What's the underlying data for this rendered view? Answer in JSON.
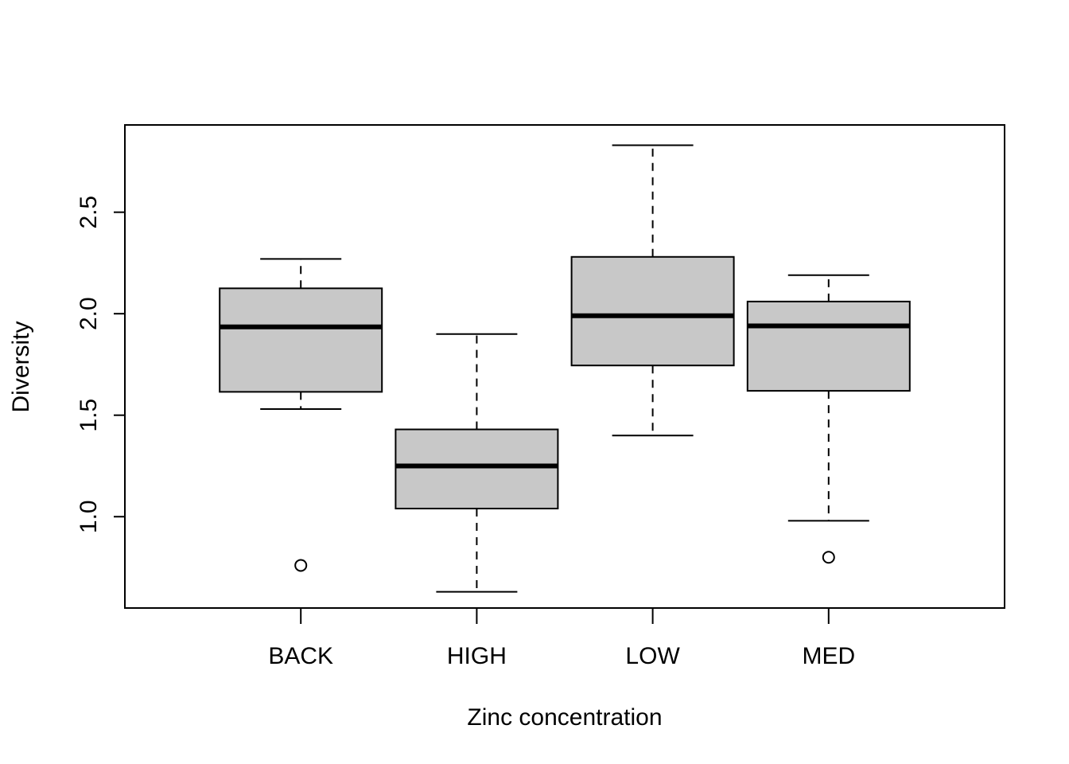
{
  "chart_data": {
    "type": "boxplot",
    "title": "",
    "xlabel": "Zinc concentration",
    "ylabel": "Diversity",
    "categories": [
      "BACK",
      "HIGH",
      "LOW",
      "MED"
    ],
    "ylim": [
      0.55,
      2.93
    ],
    "yticks": [
      1.0,
      1.5,
      2.0,
      2.5
    ],
    "ytick_labels": [
      "1.0",
      "1.5",
      "2.0",
      "2.5"
    ],
    "box_fill": "#c8c8c8",
    "grid": false,
    "legend": "none",
    "boxes": [
      {
        "category": "BACK",
        "whisker_low": 1.53,
        "q1": 1.615,
        "median": 1.935,
        "q3": 2.125,
        "whisker_high": 2.27,
        "outliers": [
          0.76
        ]
      },
      {
        "category": "HIGH",
        "whisker_low": 0.63,
        "q1": 1.04,
        "median": 1.25,
        "q3": 1.43,
        "whisker_high": 1.9,
        "outliers": []
      },
      {
        "category": "LOW",
        "whisker_low": 1.4,
        "q1": 1.745,
        "median": 1.99,
        "q3": 2.28,
        "whisker_high": 2.83,
        "outliers": []
      },
      {
        "category": "MED",
        "whisker_low": 0.98,
        "q1": 1.62,
        "median": 1.94,
        "q3": 2.06,
        "whisker_high": 2.19,
        "outliers": [
          0.8
        ]
      }
    ]
  }
}
